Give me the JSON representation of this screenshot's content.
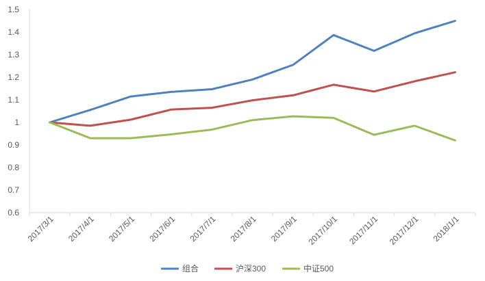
{
  "chart_data": {
    "type": "line",
    "title": "",
    "xlabel": "",
    "ylabel": "",
    "x": [
      "2017/3/1",
      "2017/4/1",
      "2017/5/1",
      "2017/6/1",
      "2017/7/1",
      "2017/8/1",
      "2017/9/1",
      "2017/10/1",
      "2017/11/1",
      "2017/12/1",
      "2018/1/1"
    ],
    "ylim": [
      0.6,
      1.5
    ],
    "yticks": [
      "0.6",
      "0.7",
      "0.8",
      "0.9",
      "1",
      "1.1",
      "1.2",
      "1.3",
      "1.4",
      "1.5"
    ],
    "grid": false,
    "legend_position": "bottom",
    "series": [
      {
        "name": "组合",
        "color": "#4F81BD",
        "values": [
          1.0,
          1.055,
          1.115,
          1.135,
          1.147,
          1.19,
          1.255,
          1.387,
          1.317,
          1.395,
          1.45
        ]
      },
      {
        "name": "沪深300",
        "color": "#C0504D",
        "values": [
          1.0,
          0.985,
          1.012,
          1.057,
          1.065,
          1.098,
          1.12,
          1.167,
          1.137,
          1.182,
          1.222
        ]
      },
      {
        "name": "中证500",
        "color": "#9BBB59",
        "values": [
          1.0,
          0.93,
          0.93,
          0.947,
          0.968,
          1.01,
          1.027,
          1.02,
          0.945,
          0.985,
          0.92
        ]
      }
    ]
  }
}
